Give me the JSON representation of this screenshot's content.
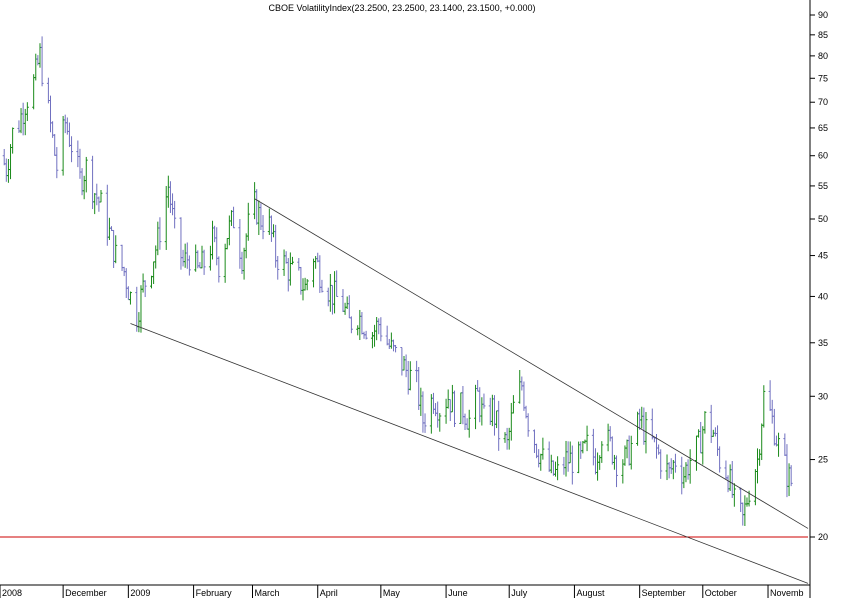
{
  "chart_data": {
    "type": "ohlc",
    "title": "CBOE VolatilityIndex(23.2500, 23.2500, 23.1400, 23.1500, +0.000)",
    "xlabel": "",
    "ylabel": "",
    "y_scale": "log",
    "ylim": [
      18,
      93
    ],
    "y_ticks": [
      20,
      25,
      30,
      35,
      40,
      45,
      50,
      55,
      60,
      65,
      70,
      75,
      80,
      85,
      90
    ],
    "x_ticks": [
      {
        "label": "2008",
        "date": "2008-11-01"
      },
      {
        "label": "December",
        "date": "2008-12-01"
      },
      {
        "label": "2009",
        "date": "2009-01-01"
      },
      {
        "label": "February",
        "date": "2009-02-01"
      },
      {
        "label": "March",
        "date": "2009-03-01"
      },
      {
        "label": "April",
        "date": "2009-04-01"
      },
      {
        "label": "May",
        "date": "2009-05-01"
      },
      {
        "label": "June",
        "date": "2009-06-01"
      },
      {
        "label": "July",
        "date": "2009-07-01"
      },
      {
        "label": "August",
        "date": "2009-08-01"
      },
      {
        "label": "September",
        "date": "2009-09-01"
      },
      {
        "label": "October",
        "date": "2009-10-01"
      },
      {
        "label": "Novemb",
        "date": "2009-11-01"
      }
    ],
    "xlim": [
      "2008-11-01",
      "2009-11-20"
    ],
    "grid": false,
    "legend": "none",
    "up_color": "#1a8a1a",
    "down_color": "#7070c0",
    "points": [
      [
        "2008-11-01",
        60
      ],
      [
        "2008-11-04",
        58
      ],
      [
        "2008-11-07",
        64
      ],
      [
        "2008-11-10",
        66
      ],
      [
        "2008-11-13",
        70
      ],
      [
        "2008-11-17",
        74
      ],
      [
        "2008-11-20",
        80
      ],
      [
        "2008-11-24",
        68
      ],
      [
        "2008-11-28",
        58
      ],
      [
        "2008-12-02",
        66
      ],
      [
        "2008-12-05",
        62
      ],
      [
        "2008-12-09",
        56
      ],
      [
        "2008-12-12",
        58
      ],
      [
        "2008-12-16",
        54
      ],
      [
        "2008-12-19",
        52
      ],
      [
        "2008-12-23",
        48
      ],
      [
        "2008-12-26",
        45
      ],
      [
        "2008-12-30",
        43
      ],
      [
        "2009-01-02",
        40
      ],
      [
        "2009-01-05",
        38
      ],
      [
        "2009-01-08",
        41
      ],
      [
        "2009-01-12",
        44
      ],
      [
        "2009-01-15",
        47
      ],
      [
        "2009-01-20",
        55
      ],
      [
        "2009-01-23",
        48
      ],
      [
        "2009-01-27",
        44
      ],
      [
        "2009-01-30",
        45
      ],
      [
        "2009-02-03",
        43
      ],
      [
        "2009-02-06",
        44
      ],
      [
        "2009-02-10",
        47
      ],
      [
        "2009-02-13",
        44
      ],
      [
        "2009-02-17",
        48
      ],
      [
        "2009-02-20",
        50
      ],
      [
        "2009-02-24",
        45
      ],
      [
        "2009-02-27",
        49
      ],
      [
        "2009-03-02",
        52
      ],
      [
        "2009-03-05",
        50
      ],
      [
        "2009-03-09",
        49
      ],
      [
        "2009-03-12",
        45
      ],
      [
        "2009-03-16",
        44
      ],
      [
        "2009-03-19",
        43
      ],
      [
        "2009-03-23",
        42
      ],
      [
        "2009-03-26",
        41
      ],
      [
        "2009-03-30",
        45
      ],
      [
        "2009-04-02",
        43
      ],
      [
        "2009-04-06",
        41
      ],
      [
        "2009-04-09",
        40
      ],
      [
        "2009-04-13",
        39
      ],
      [
        "2009-04-16",
        37
      ],
      [
        "2009-04-20",
        38
      ],
      [
        "2009-04-23",
        37
      ],
      [
        "2009-04-27",
        36
      ],
      [
        "2009-04-30",
        37
      ],
      [
        "2009-05-04",
        35
      ],
      [
        "2009-05-07",
        34
      ],
      [
        "2009-05-11",
        33
      ],
      [
        "2009-05-14",
        32
      ],
      [
        "2009-05-18",
        31
      ],
      [
        "2009-05-21",
        28
      ],
      [
        "2009-05-26",
        30
      ],
      [
        "2009-05-29",
        29
      ],
      [
        "2009-06-02",
        30
      ],
      [
        "2009-06-05",
        29
      ],
      [
        "2009-06-09",
        29
      ],
      [
        "2009-06-12",
        28
      ],
      [
        "2009-06-16",
        30
      ],
      [
        "2009-06-19",
        28
      ],
      [
        "2009-06-23",
        29
      ],
      [
        "2009-06-26",
        27
      ],
      [
        "2009-06-30",
        26
      ],
      [
        "2009-07-03",
        29
      ],
      [
        "2009-07-07",
        31
      ],
      [
        "2009-07-10",
        28
      ],
      [
        "2009-07-14",
        26
      ],
      [
        "2009-07-17",
        25
      ],
      [
        "2009-07-21",
        24
      ],
      [
        "2009-07-24",
        24
      ],
      [
        "2009-07-28",
        25
      ],
      [
        "2009-07-31",
        25
      ],
      [
        "2009-08-04",
        25
      ],
      [
        "2009-08-07",
        26
      ],
      [
        "2009-08-11",
        25
      ],
      [
        "2009-08-14",
        27
      ],
      [
        "2009-08-18",
        26
      ],
      [
        "2009-08-21",
        25
      ],
      [
        "2009-08-25",
        25
      ],
      [
        "2009-08-28",
        26
      ],
      [
        "2009-09-01",
        28
      ],
      [
        "2009-09-04",
        27
      ],
      [
        "2009-09-08",
        26
      ],
      [
        "2009-09-11",
        25
      ],
      [
        "2009-09-15",
        24
      ],
      [
        "2009-09-18",
        25
      ],
      [
        "2009-09-22",
        24
      ],
      [
        "2009-09-25",
        25
      ],
      [
        "2009-09-29",
        26
      ],
      [
        "2009-10-02",
        28
      ],
      [
        "2009-10-06",
        27
      ],
      [
        "2009-10-09",
        25
      ],
      [
        "2009-10-13",
        24
      ],
      [
        "2009-10-16",
        22
      ],
      [
        "2009-10-20",
        21
      ],
      [
        "2009-10-23",
        23
      ],
      [
        "2009-10-27",
        25
      ],
      [
        "2009-10-30",
        30
      ],
      [
        "2009-11-03",
        28
      ],
      [
        "2009-11-06",
        26
      ],
      [
        "2009-11-10",
        24
      ],
      [
        "2009-11-13",
        23.15
      ]
    ],
    "trendlines": [
      {
        "from": [
          "2009-01-02",
          37
        ],
        "to": [
          "2009-11-20",
          17.5
        ],
        "color": "#333333"
      },
      {
        "from": [
          "2009-03-02",
          53
        ],
        "to": [
          "2009-11-20",
          20.5
        ],
        "color": "#333333"
      }
    ],
    "horizontal_lines": [
      {
        "y": 20,
        "color": "#cc0000"
      }
    ]
  }
}
